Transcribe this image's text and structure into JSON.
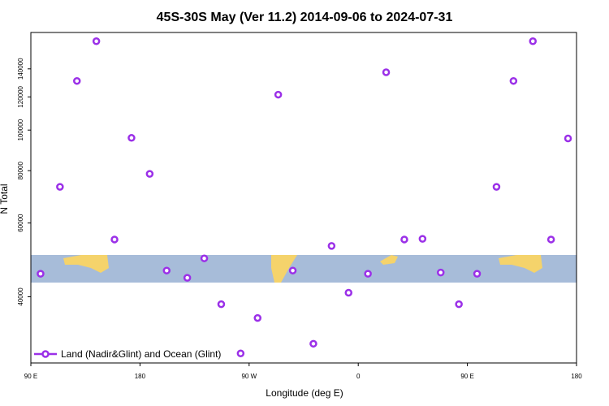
{
  "chart_data": {
    "type": "scatter",
    "title": "45S-30S May (Ver 11.2)   2014-09-06 to 2024-07-31",
    "xlabel": "Longitude (deg E)",
    "ylabel": "N Total",
    "series": [
      {
        "name": "Land (Nadir&Glint) and Ocean (Glint)",
        "color": "#9b30e8",
        "x": [
          98,
          114,
          128,
          144,
          159,
          173,
          188,
          202,
          219,
          233,
          247,
          263,
          277,
          294,
          306,
          323,
          338,
          352,
          368,
          383,
          398,
          413,
          428,
          443,
          458,
          474,
          488,
          504,
          519,
          533
        ],
        "values": [
          45400,
          73200,
          131000,
          163000,
          54800,
          95800,
          78600,
          46200,
          44400,
          49400,
          38400,
          29300,
          35600,
          121500,
          46200,
          30900,
          52900,
          40900,
          45400,
          137400,
          54800,
          55000,
          45700,
          38400,
          45400,
          73200,
          131000,
          163000,
          54800,
          95500
        ]
      }
    ],
    "xlim": [
      90,
      540
    ],
    "xticks": [
      {
        "value": 90,
        "label": "90 E"
      },
      180,
      {
        "value": 270,
        "label": "90 W"
      },
      {
        "value": 360,
        "label": "0"
      },
      {
        "value": 450,
        "label": "90 E"
      },
      {
        "value": 540,
        "label": "180"
      }
    ],
    "ylim": [
      27800,
      171000
    ],
    "ylog": true,
    "yticks": [
      40000,
      60000,
      80000,
      100000,
      120000,
      140000
    ],
    "legend": "bottom-left"
  }
}
